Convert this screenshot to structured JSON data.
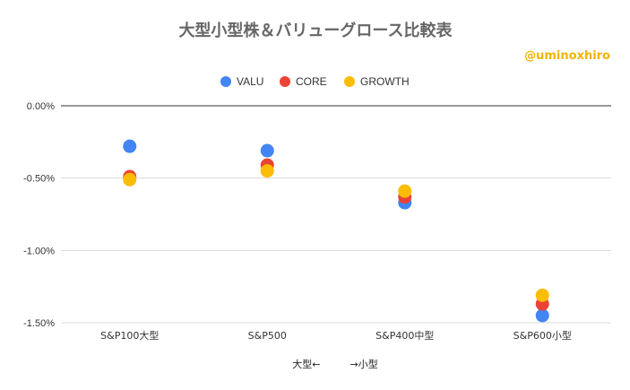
{
  "chart_data": {
    "type": "scatter",
    "title": "大型小型株＆バリューグロース比較表",
    "watermark": "@uminoxhiro",
    "xlabel": "大型←　　　→小型",
    "ylabel": "",
    "categories": [
      "S&P100大型",
      "S&P500",
      "S&P400中型",
      "S&P600小型"
    ],
    "ylim": [
      -1.5,
      0.0
    ],
    "yticks": [
      0.0,
      -0.5,
      -1.0,
      -1.5
    ],
    "ytick_labels": [
      "0.00%",
      "-0.50%",
      "-1.00%",
      "-1.50%"
    ],
    "grid": true,
    "legend_position": "top",
    "series": [
      {
        "name": "VALU",
        "color": "#4285f4",
        "values": [
          -0.28,
          -0.31,
          -0.67,
          -1.45
        ]
      },
      {
        "name": "CORE",
        "color": "#ea4335",
        "values": [
          -0.49,
          -0.41,
          -0.63,
          -1.37
        ]
      },
      {
        "name": "GROWTH",
        "color": "#fbbc04",
        "values": [
          -0.51,
          -0.45,
          -0.59,
          -1.31
        ]
      }
    ]
  }
}
